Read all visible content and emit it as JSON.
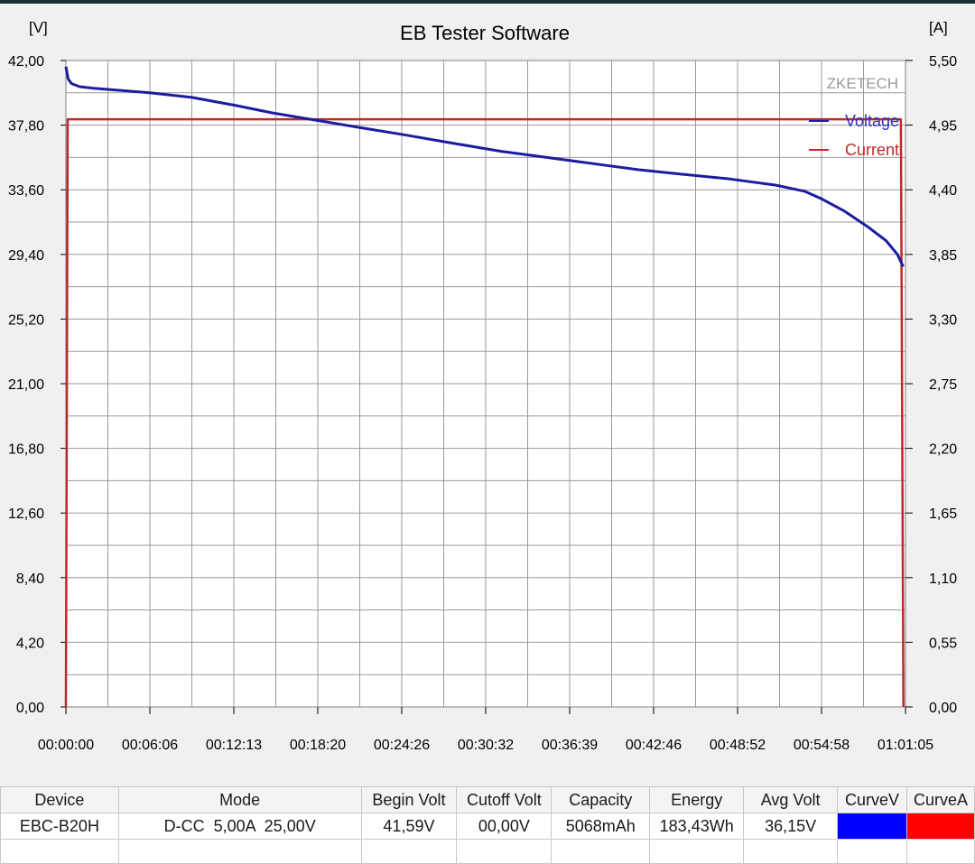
{
  "chart_data": {
    "type": "line",
    "title": "EB Tester Software",
    "watermark": "ZKETECH",
    "y_left_unit": "[V]",
    "y_right_unit": "[A]",
    "y_left_ticks": [
      "42,00",
      "37,80",
      "33,60",
      "29,40",
      "25,20",
      "21,00",
      "16,80",
      "12,60",
      "8,40",
      "4,20",
      "0,00"
    ],
    "y_right_ticks": [
      "5,50",
      "4,95",
      "4,40",
      "3,85",
      "3,30",
      "2,75",
      "2,20",
      "1,65",
      "1,10",
      "0,55",
      "0,00"
    ],
    "x_ticks": [
      "00:00:00",
      "00:06:06",
      "00:12:13",
      "00:18:20",
      "00:24:26",
      "00:30:32",
      "00:36:39",
      "00:42:46",
      "00:48:52",
      "00:54:58",
      "01:01:05"
    ],
    "ylim_left": [
      0,
      42
    ],
    "ylim_right": [
      0,
      5.5
    ],
    "xlim_seconds": [
      0,
      3665
    ],
    "grid": true,
    "legend_position": "top-right",
    "series": [
      {
        "name": "Voltage",
        "axis": "left",
        "color": "#1c1ca0",
        "x_seconds": [
          0,
          10,
          25,
          60,
          120,
          200,
          366,
          550,
          733,
          900,
          1100,
          1300,
          1466,
          1700,
          1900,
          2100,
          2300,
          2500,
          2700,
          2900,
          3100,
          3225,
          3300,
          3400,
          3500,
          3580,
          3630,
          3655
        ],
        "y": [
          41.6,
          40.8,
          40.5,
          40.3,
          40.2,
          40.1,
          39.9,
          39.6,
          39.1,
          38.6,
          38.1,
          37.6,
          37.2,
          36.6,
          36.1,
          35.7,
          35.3,
          34.9,
          34.6,
          34.3,
          33.9,
          33.5,
          33.0,
          32.2,
          31.2,
          30.3,
          29.4,
          28.6
        ]
      },
      {
        "name": "Current",
        "axis": "right",
        "color": "#c0282a",
        "x_seconds": [
          0,
          8,
          3645,
          3656
        ],
        "y": [
          0,
          5.0,
          5.0,
          0
        ]
      }
    ]
  },
  "info_table": {
    "headers": [
      "Device",
      "Mode",
      "Begin Volt",
      "Cutoff Volt",
      "Capacity",
      "Energy",
      "Avg Volt",
      "CurveV",
      "CurveA"
    ],
    "row": {
      "device": "EBC-B20H",
      "mode": "D-CC  5,00A  25,00V",
      "begin_volt": "41,59V",
      "cutoff_volt": "00,00V",
      "capacity": "5068mAh",
      "energy": "183,43Wh",
      "avg_volt": "36,15V"
    },
    "curve_v_color": "#0000ff",
    "curve_a_color": "#ff0000"
  }
}
